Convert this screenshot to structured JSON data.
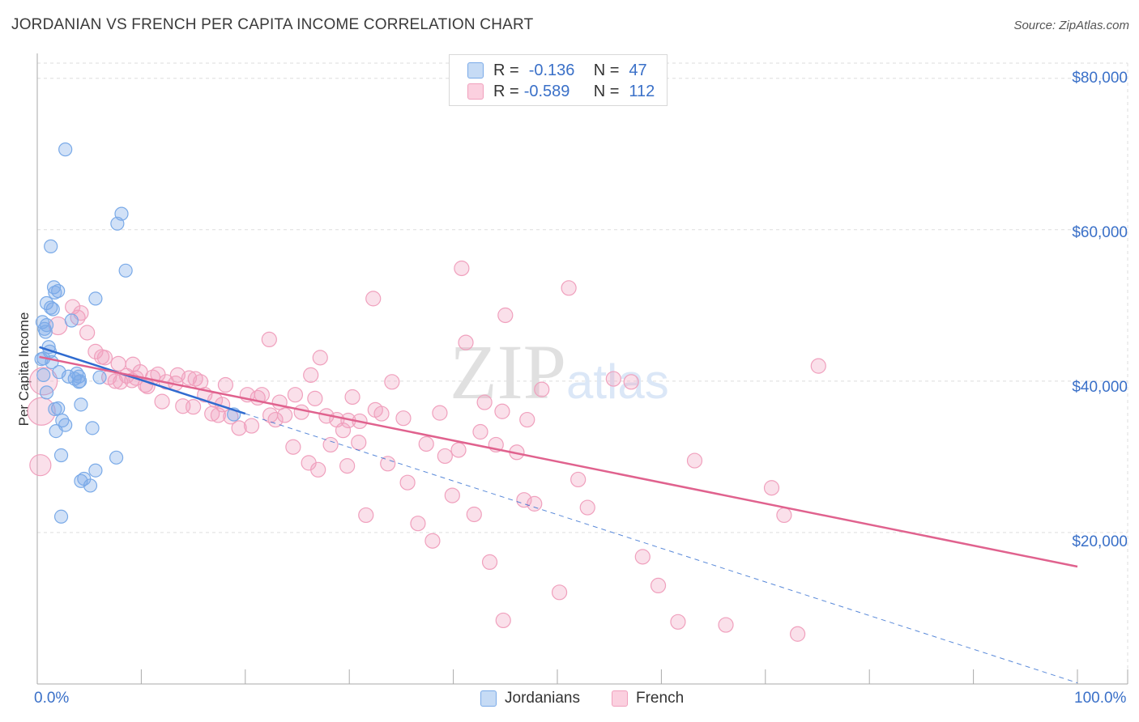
{
  "title": "JORDANIAN VS FRENCH PER CAPITA INCOME CORRELATION CHART",
  "source": "Source: ZipAtlas.com",
  "watermark": "ZIPatlas",
  "colors": {
    "jordanians": "#7aaae8",
    "french": "#f0a0bd",
    "jordanians_line": "#2f6bd0",
    "french_line": "#e0628e",
    "axis_text": "#3a70c8"
  },
  "stats": [
    {
      "r_label": "R =",
      "r_value": "-0.136",
      "n_label": "N =",
      "n_value": "47"
    },
    {
      "r_label": "R =",
      "r_value": "-0.589",
      "n_label": "N =",
      "n_value": "112"
    }
  ],
  "chart_data": {
    "type": "scatter",
    "title": "JORDANIAN VS FRENCH PER CAPITA INCOME CORRELATION CHART",
    "xlabel": "",
    "ylabel": "Per Capita Income",
    "xlim": [
      0,
      100
    ],
    "ylim": [
      0,
      82000
    ],
    "x_tick_labels": [
      "0.0%",
      "100.0%"
    ],
    "y_ticks": [
      20000,
      40000,
      60000,
      80000
    ],
    "y_tick_labels": [
      "$20,000",
      "$40,000",
      "$60,000",
      "$80,000"
    ],
    "grid": true,
    "legend": [
      "Jordanians",
      "French"
    ],
    "series": [
      {
        "name": "Jordanians",
        "trend": {
          "x0": 0.2,
          "y0": 44500,
          "x1": 20,
          "y1": 35700
        },
        "points": [
          [
            2.7,
            70600
          ],
          [
            8.1,
            62100
          ],
          [
            7.7,
            60800
          ],
          [
            1.3,
            57800
          ],
          [
            8.5,
            54600
          ],
          [
            1.6,
            52400
          ],
          [
            2.0,
            51900
          ],
          [
            1.7,
            51700
          ],
          [
            5.6,
            50900
          ],
          [
            0.9,
            50300
          ],
          [
            1.5,
            49500
          ],
          [
            3.3,
            48000
          ],
          [
            0.5,
            47800
          ],
          [
            0.7,
            46900
          ],
          [
            0.8,
            46500
          ],
          [
            1.1,
            44500
          ],
          [
            0.6,
            43000
          ],
          [
            1.4,
            42500
          ],
          [
            3.8,
            41000
          ],
          [
            4.0,
            40600
          ],
          [
            3.6,
            40300
          ],
          [
            6.0,
            40500
          ],
          [
            4.0,
            39900
          ],
          [
            0.9,
            38500
          ],
          [
            2.0,
            36400
          ],
          [
            4.2,
            36900
          ],
          [
            2.4,
            34800
          ],
          [
            2.7,
            34200
          ],
          [
            5.3,
            33800
          ],
          [
            1.8,
            33400
          ],
          [
            2.3,
            30200
          ],
          [
            7.6,
            29900
          ],
          [
            5.6,
            28200
          ],
          [
            4.5,
            27100
          ],
          [
            4.2,
            26800
          ],
          [
            5.1,
            26200
          ],
          [
            2.3,
            22100
          ],
          [
            18.9,
            35600
          ],
          [
            0.9,
            47400
          ],
          [
            3.0,
            40600
          ],
          [
            1.2,
            43900
          ],
          [
            0.4,
            42900
          ],
          [
            4.1,
            40000
          ],
          [
            1.3,
            49700
          ],
          [
            2.1,
            41200
          ],
          [
            0.6,
            40800
          ],
          [
            1.7,
            36300
          ]
        ]
      },
      {
        "name": "French",
        "trend": {
          "x0": 0.2,
          "y0": 43200,
          "x1": 100,
          "y1": 15500
        },
        "points": [
          [
            0.3,
            28900
          ],
          [
            0.4,
            36000
          ],
          [
            0.6,
            40000
          ],
          [
            2.0,
            47300
          ],
          [
            3.4,
            49800
          ],
          [
            4.2,
            49000
          ],
          [
            4.8,
            46400
          ],
          [
            5.6,
            43900
          ],
          [
            6.2,
            43200
          ],
          [
            6.9,
            40500
          ],
          [
            7.5,
            40000
          ],
          [
            7.8,
            42300
          ],
          [
            8.6,
            40700
          ],
          [
            9.1,
            40100
          ],
          [
            9.2,
            42200
          ],
          [
            9.9,
            41200
          ],
          [
            10.4,
            39500
          ],
          [
            11.1,
            40500
          ],
          [
            12.0,
            37300
          ],
          [
            12.4,
            39900
          ],
          [
            13.5,
            40800
          ],
          [
            14.0,
            36700
          ],
          [
            14.6,
            40400
          ],
          [
            15.0,
            36600
          ],
          [
            15.7,
            39900
          ],
          [
            16.1,
            38200
          ],
          [
            16.8,
            35700
          ],
          [
            17.4,
            35500
          ],
          [
            17.8,
            36900
          ],
          [
            18.1,
            39500
          ],
          [
            18.6,
            35300
          ],
          [
            19.4,
            33800
          ],
          [
            20.2,
            38200
          ],
          [
            20.6,
            34100
          ],
          [
            21.2,
            37800
          ],
          [
            21.6,
            38200
          ],
          [
            22.4,
            35500
          ],
          [
            22.9,
            34900
          ],
          [
            23.3,
            37200
          ],
          [
            23.8,
            35500
          ],
          [
            24.6,
            31300
          ],
          [
            24.8,
            38200
          ],
          [
            25.4,
            35900
          ],
          [
            26.1,
            29200
          ],
          [
            26.3,
            40800
          ],
          [
            26.7,
            37700
          ],
          [
            27.0,
            28300
          ],
          [
            27.2,
            43100
          ],
          [
            27.8,
            35400
          ],
          [
            28.2,
            31600
          ],
          [
            28.8,
            34900
          ],
          [
            29.4,
            33500
          ],
          [
            29.8,
            28800
          ],
          [
            30.3,
            37900
          ],
          [
            30.9,
            31900
          ],
          [
            31.0,
            34700
          ],
          [
            31.6,
            22300
          ],
          [
            32.5,
            36200
          ],
          [
            33.1,
            35700
          ],
          [
            33.7,
            29100
          ],
          [
            34.1,
            39900
          ],
          [
            35.2,
            35100
          ],
          [
            35.6,
            26600
          ],
          [
            36.6,
            21200
          ],
          [
            37.4,
            31700
          ],
          [
            38.0,
            18900
          ],
          [
            38.7,
            35800
          ],
          [
            39.2,
            30100
          ],
          [
            39.9,
            24900
          ],
          [
            40.5,
            30900
          ],
          [
            41.2,
            45100
          ],
          [
            42.0,
            22400
          ],
          [
            42.6,
            33300
          ],
          [
            43.0,
            37200
          ],
          [
            43.5,
            16100
          ],
          [
            44.1,
            31600
          ],
          [
            44.8,
            8400
          ],
          [
            45.0,
            48700
          ],
          [
            46.1,
            30600
          ],
          [
            46.8,
            24300
          ],
          [
            47.1,
            34900
          ],
          [
            47.8,
            23800
          ],
          [
            48.5,
            38900
          ],
          [
            50.2,
            12100
          ],
          [
            51.1,
            52300
          ],
          [
            52.0,
            27000
          ],
          [
            52.9,
            23300
          ],
          [
            55.4,
            40300
          ],
          [
            57.1,
            39900
          ],
          [
            58.2,
            16800
          ],
          [
            59.7,
            13000
          ],
          [
            61.6,
            8200
          ],
          [
            63.2,
            29500
          ],
          [
            66.2,
            7800
          ],
          [
            70.6,
            25900
          ],
          [
            71.8,
            22300
          ],
          [
            73.1,
            6600
          ],
          [
            75.1,
            42000
          ],
          [
            10.6,
            39300
          ],
          [
            11.6,
            40900
          ],
          [
            13.3,
            39700
          ],
          [
            22.3,
            45500
          ],
          [
            32.3,
            50900
          ],
          [
            40.8,
            54900
          ],
          [
            44.7,
            36000
          ],
          [
            29.9,
            34800
          ],
          [
            17.1,
            37500
          ],
          [
            8.0,
            39900
          ],
          [
            9.5,
            40400
          ],
          [
            6.5,
            43100
          ],
          [
            3.9,
            48400
          ],
          [
            15.2,
            40300
          ]
        ]
      }
    ]
  }
}
